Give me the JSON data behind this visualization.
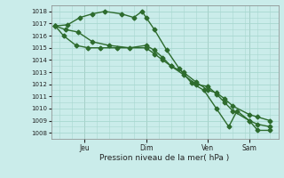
{
  "xlabel": "Pression niveau de la mer( hPa )",
  "bg_color": "#caecea",
  "grid_color": "#a8d8d0",
  "line_color": "#2d6b2d",
  "ylim": [
    1007.5,
    1018.5
  ],
  "yticks": [
    1008,
    1009,
    1010,
    1011,
    1012,
    1013,
    1014,
    1015,
    1016,
    1017,
    1018
  ],
  "x_tick_positions": [
    16,
    46,
    76,
    96
  ],
  "x_tick_labels": [
    "Jeu",
    "Dim",
    "Ven",
    "Sam"
  ],
  "xlim": [
    0,
    110
  ],
  "series1_x": [
    2,
    6,
    12,
    18,
    24,
    32,
    46,
    50,
    54,
    58,
    64,
    70,
    76,
    80,
    84,
    88,
    96,
    100,
    106
  ],
  "series1_y": [
    1016.8,
    1016.0,
    1015.2,
    1015.0,
    1015.0,
    1015.0,
    1015.0,
    1014.5,
    1014.0,
    1013.5,
    1013.0,
    1012.2,
    1011.5,
    1011.3,
    1010.8,
    1010.2,
    1009.5,
    1009.3,
    1009.0
  ],
  "series2_x": [
    2,
    7,
    13,
    20,
    28,
    38,
    46,
    50,
    54,
    58,
    64,
    70,
    76,
    80,
    84,
    88,
    96,
    100,
    106
  ],
  "series2_y": [
    1016.8,
    1016.5,
    1016.3,
    1015.5,
    1015.2,
    1015.0,
    1015.2,
    1014.8,
    1014.2,
    1013.5,
    1012.8,
    1012.0,
    1011.8,
    1011.2,
    1010.5,
    1009.8,
    1009.0,
    1008.7,
    1008.5
  ],
  "series3_x": [
    2,
    8,
    14,
    20,
    26,
    34,
    40,
    44,
    46,
    50,
    56,
    62,
    68,
    74,
    80,
    86,
    90,
    96,
    100,
    106
  ],
  "series3_y": [
    1016.8,
    1016.9,
    1017.5,
    1017.8,
    1018.0,
    1017.8,
    1017.5,
    1018.0,
    1017.5,
    1016.5,
    1014.8,
    1013.3,
    1012.1,
    1011.5,
    1010.0,
    1008.5,
    1009.8,
    1009.0,
    1008.2,
    1008.2
  ],
  "marker": "D",
  "marker_size": 2.5,
  "linewidth": 1.0
}
